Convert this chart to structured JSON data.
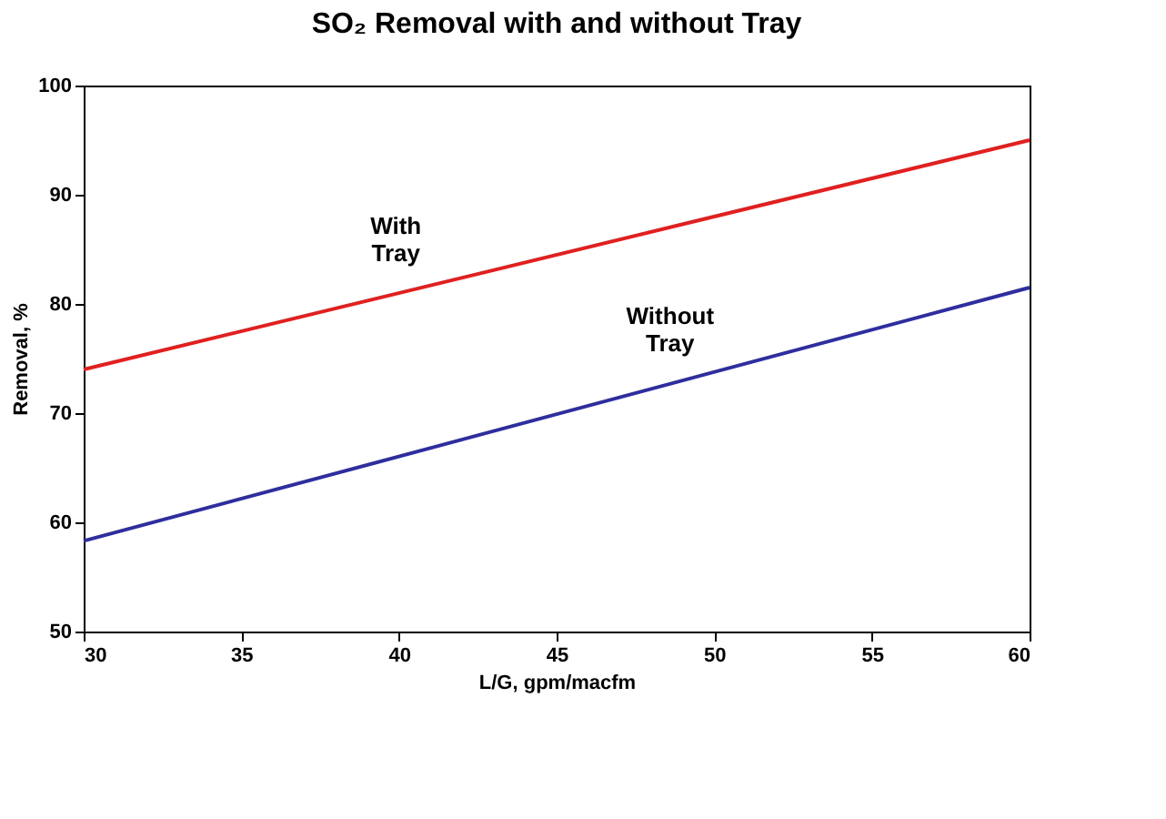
{
  "chart_data": {
    "type": "line",
    "title": "SO₂ Removal with and without Tray",
    "xlabel": "L/G, gpm/macfm",
    "ylabel": "Removal, %",
    "x": [
      30,
      60
    ],
    "series": [
      {
        "name": "With Tray",
        "color": "#e02020",
        "values": [
          74,
          95
        ]
      },
      {
        "name": "Without Tray",
        "color": "#2e2e9e",
        "values": [
          58.3,
          81.5
        ]
      }
    ],
    "xlim": [
      30,
      60
    ],
    "xticks": [
      30,
      35,
      40,
      45,
      50,
      55,
      60
    ],
    "ylim": [
      50,
      100
    ],
    "yticks": [
      50,
      60,
      70,
      80,
      90,
      100
    ],
    "grid": false,
    "marker": "none",
    "line_style": "solid"
  }
}
